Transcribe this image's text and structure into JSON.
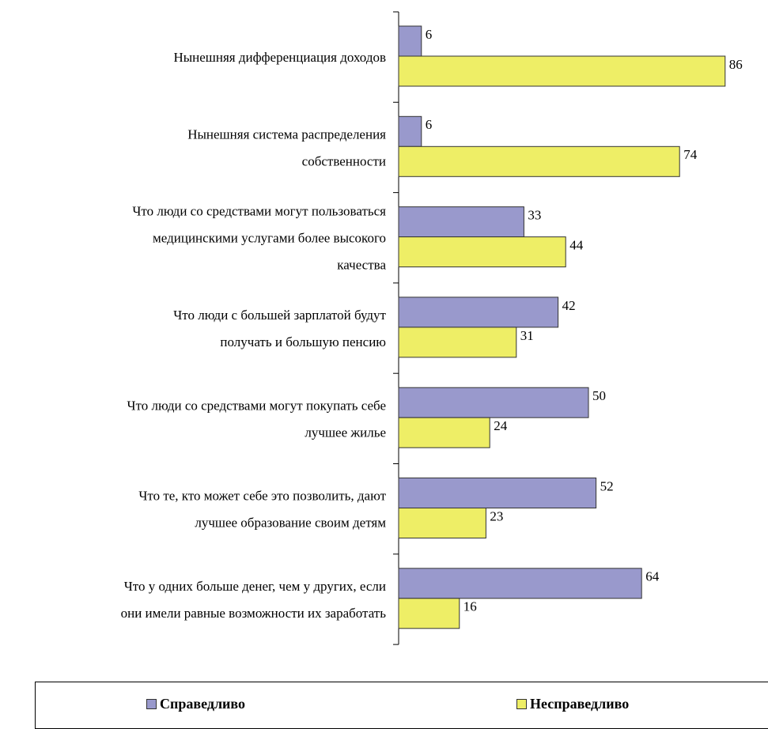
{
  "chart_data": {
    "type": "bar",
    "orientation": "horizontal",
    "categories": [
      [
        "Нынешняя дифференциация доходов"
      ],
      [
        "Нынешняя система распределения",
        "собственности"
      ],
      [
        "Что люди со средствами могут пользоваться",
        "медицинскими услугами более высокого",
        "качества"
      ],
      [
        "Что люди с большей зарплатой будут",
        "получать и большую пенсию"
      ],
      [
        "Что люди со средствами могут покупать себе",
        "лучшее жилье"
      ],
      [
        "Что те, кто может себе это позволить, дают",
        "лучшее образование своим детям"
      ],
      [
        "Что у одних больше денег, чем у других, если",
        "они имели равные возможности их заработать"
      ]
    ],
    "series": [
      {
        "name": "Справедливо",
        "color": "#9999cc",
        "values": [
          6,
          6,
          33,
          42,
          50,
          52,
          64
        ]
      },
      {
        "name": "Несправедливо",
        "color": "#eeee66",
        "values": [
          86,
          74,
          44,
          31,
          24,
          23,
          16
        ]
      }
    ],
    "xlim": [
      0,
      100
    ],
    "legend": {
      "position": "bottom"
    },
    "grid": false
  }
}
